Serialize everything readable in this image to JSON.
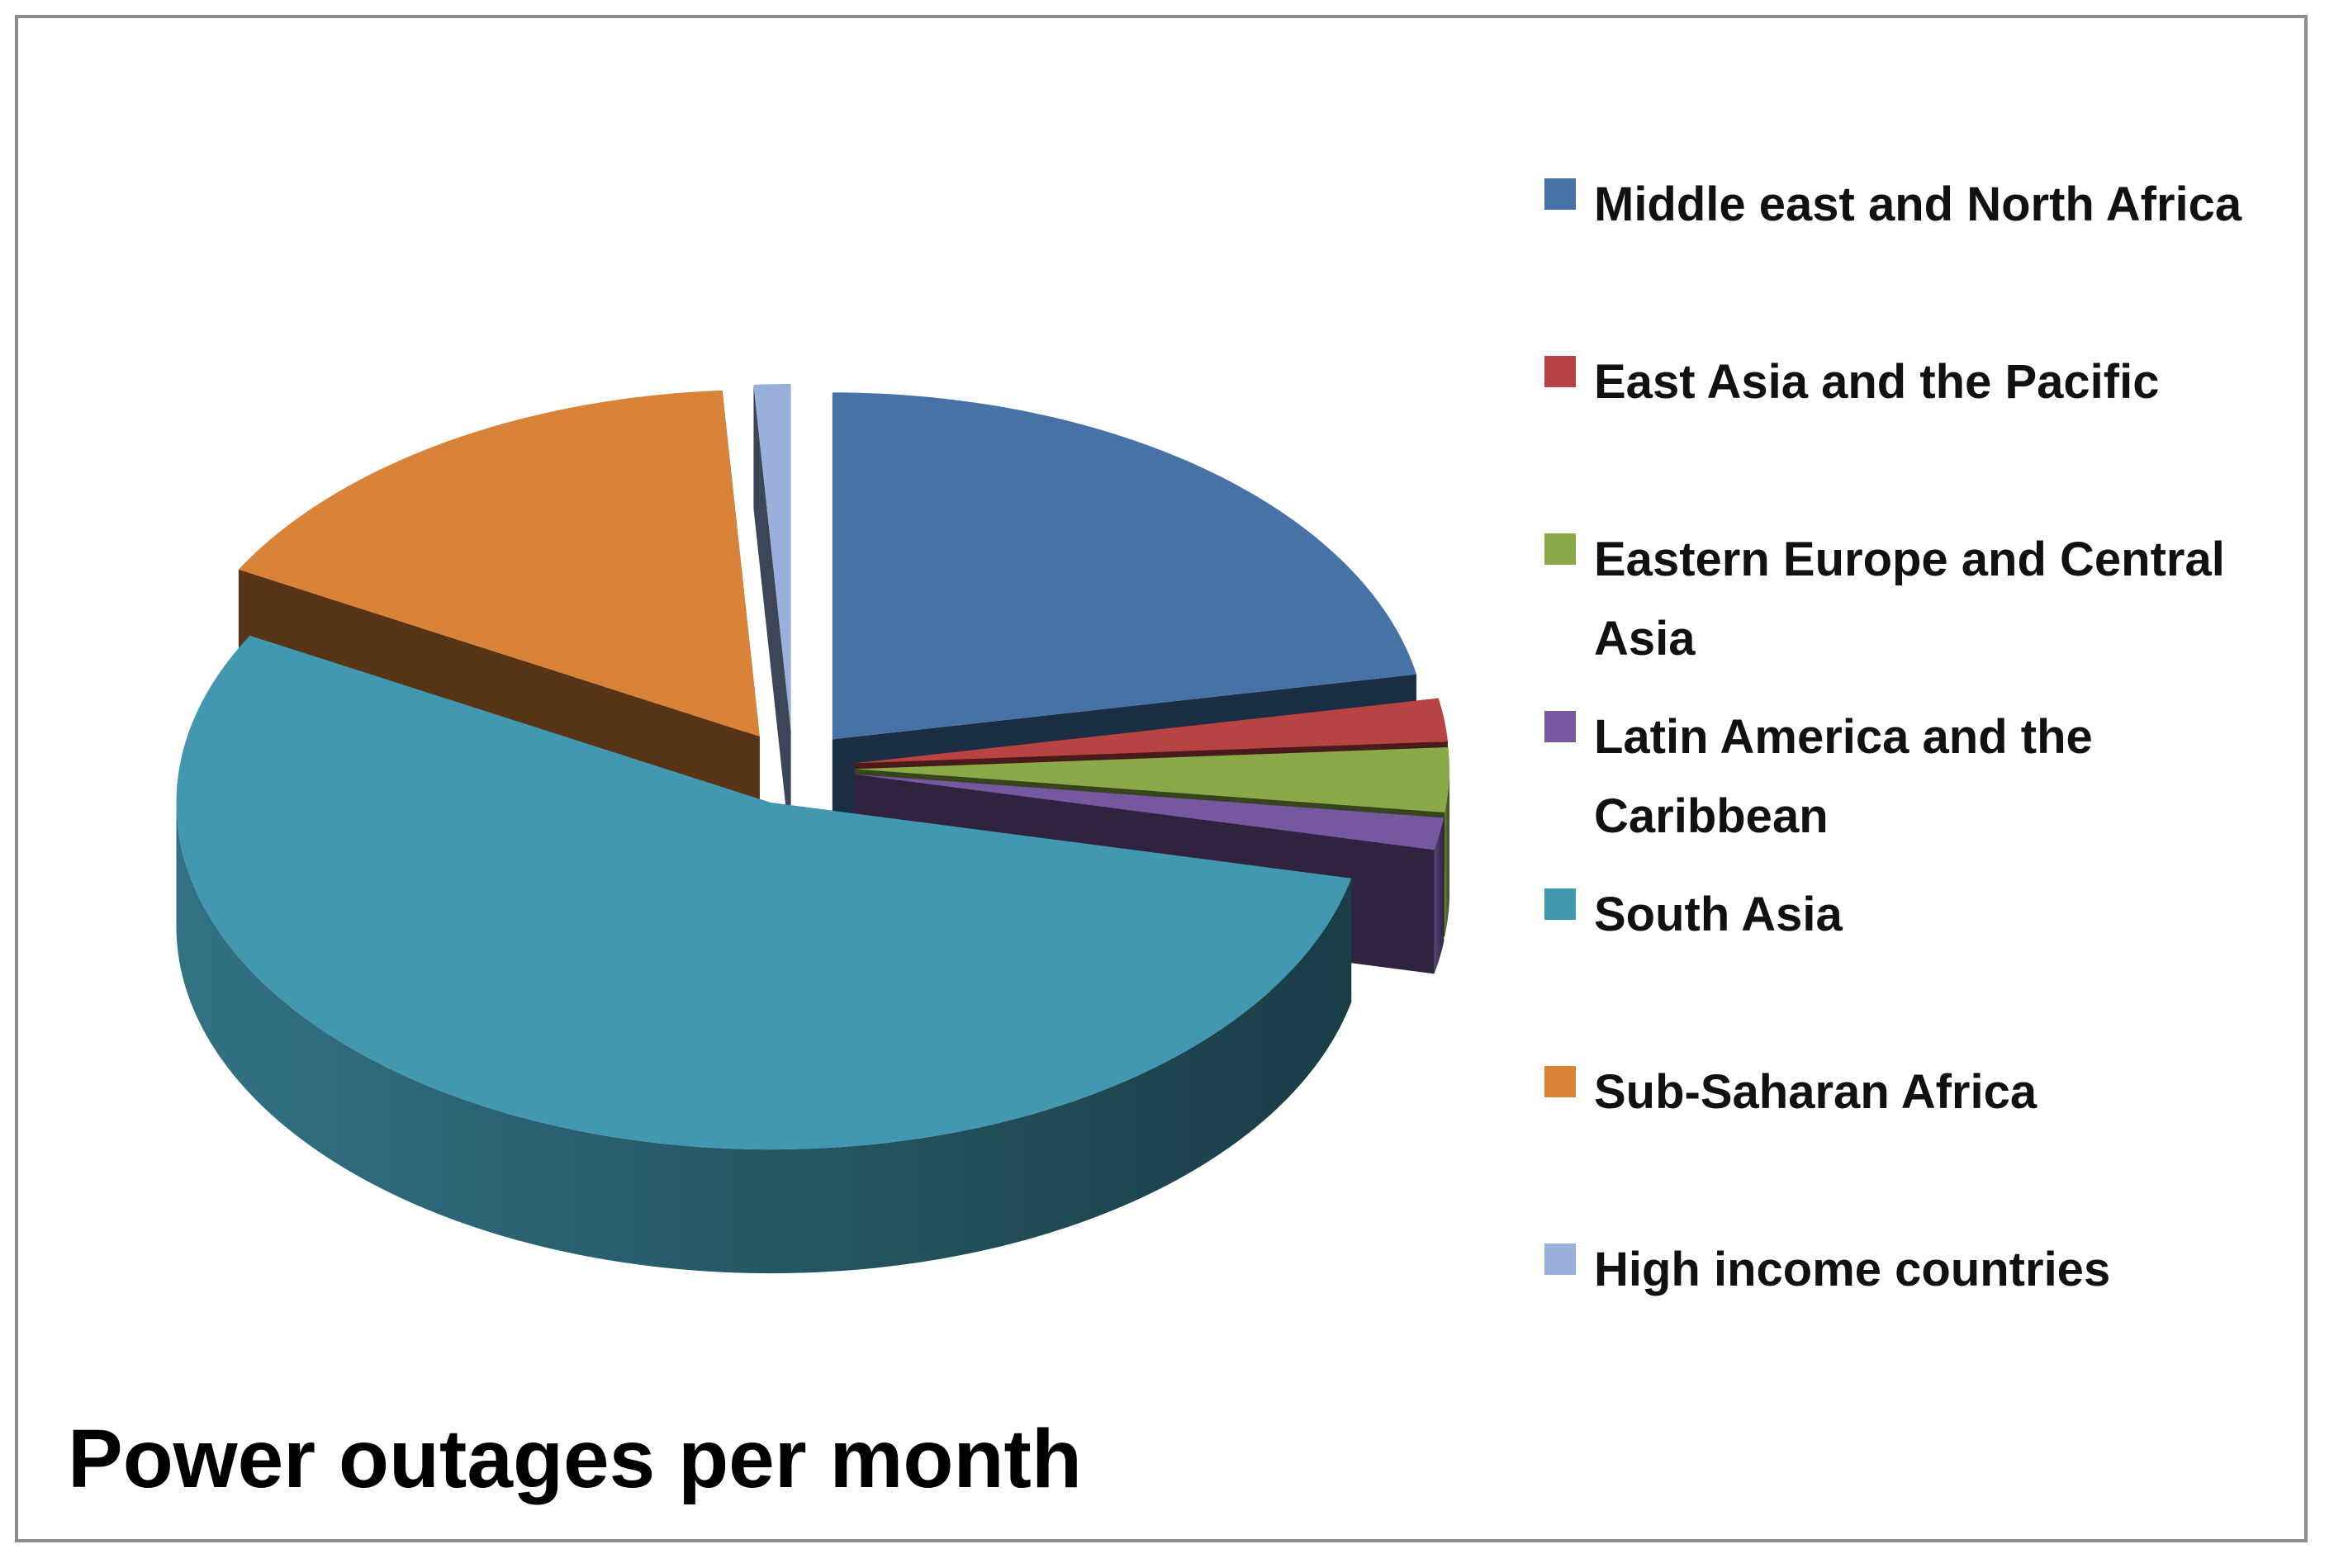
{
  "chart_data": {
    "type": "pie",
    "title": "Power outages per month",
    "categories": [
      "Middle east and North Africa",
      "East Asia and the Pacific",
      "Eastern Europe and Central Asia",
      "Latin America and the Caribbean",
      "South Asia",
      "Sub-Saharan Africa",
      "High income countries"
    ],
    "values": [
      22,
      2,
      3,
      1.5,
      54.5,
      16,
      1
    ],
    "colors": [
      "#4672a8",
      "#b84343",
      "#8aaa4a",
      "#7558a0",
      "#4298b0",
      "#d98338",
      "#98b0da"
    ],
    "legend": "right",
    "exploded": true,
    "three_d": true
  }
}
